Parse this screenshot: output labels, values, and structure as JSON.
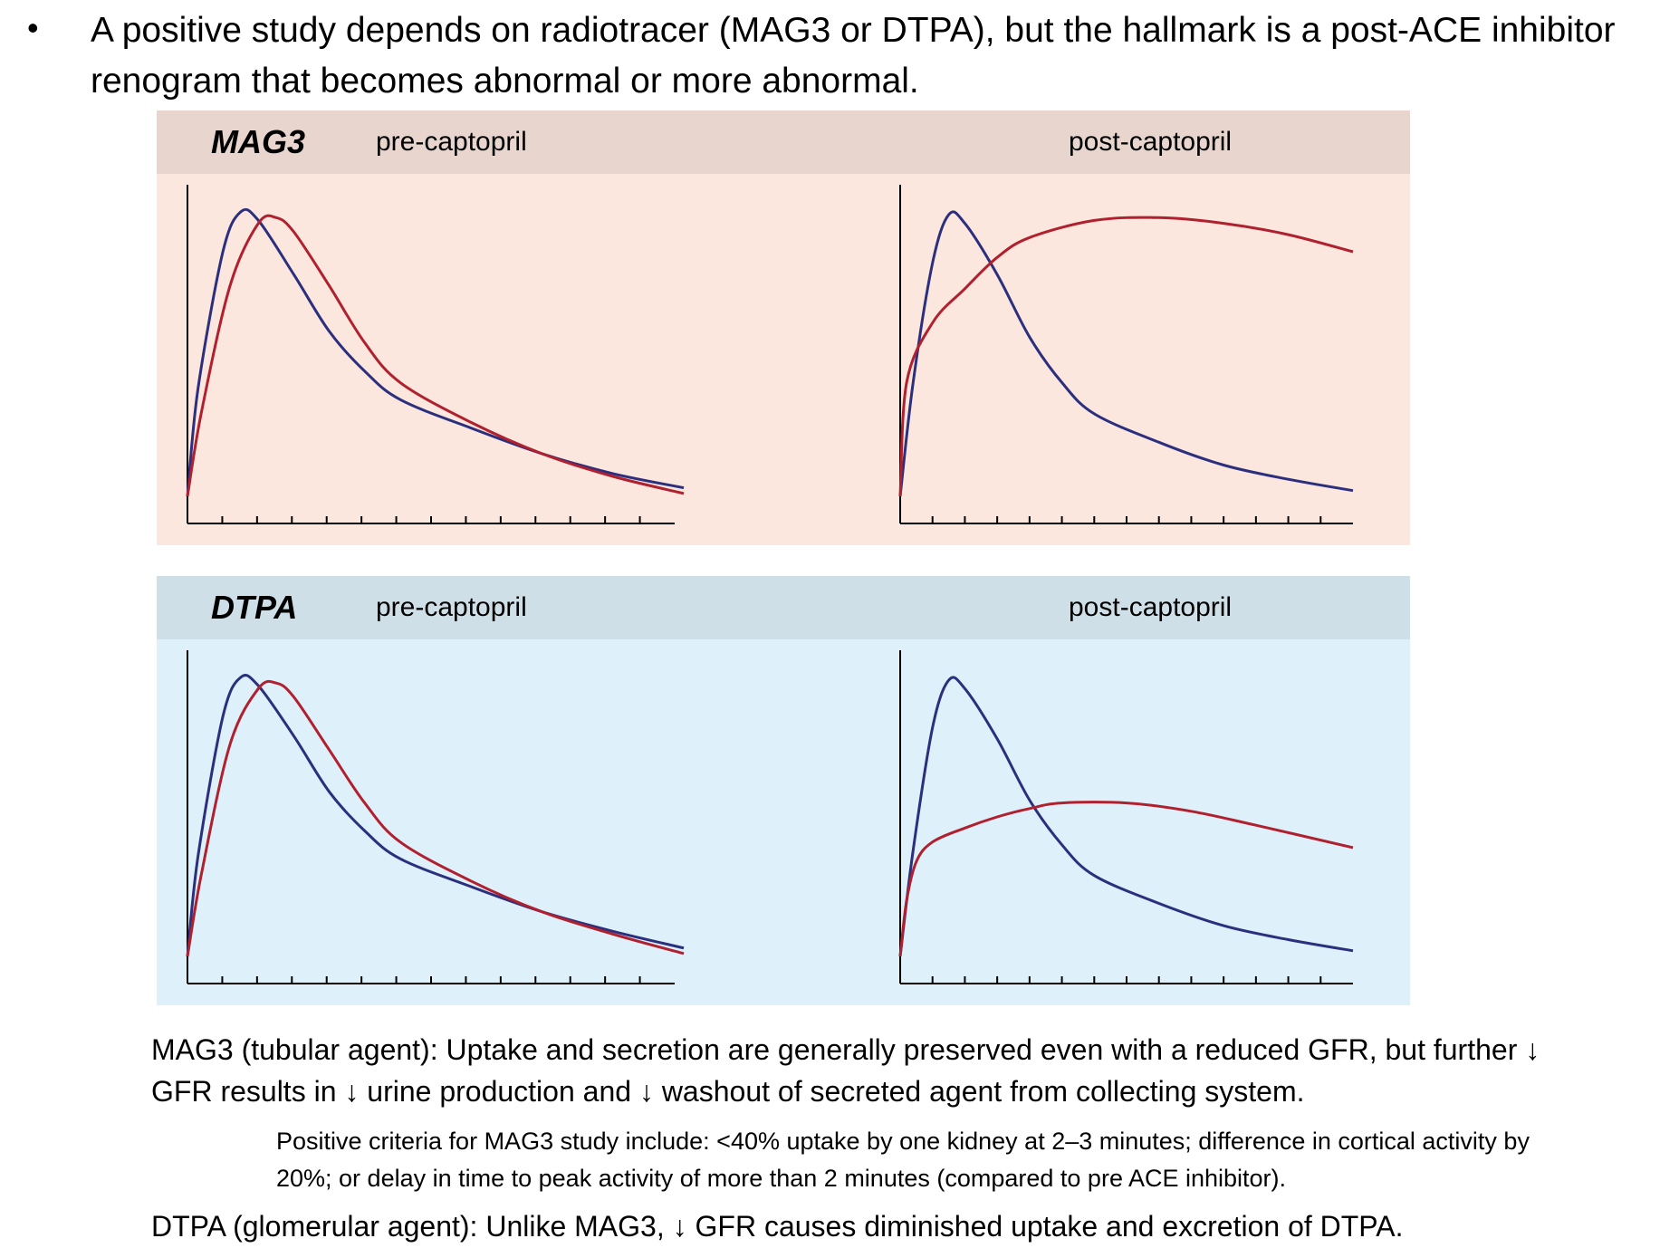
{
  "bullet": {
    "symbol": "•",
    "text": "A positive study depends on radiotracer (MAG3 or DTPA), but the hallmark is a post-ACE inhibitor renogram that becomes abnormal or more abnormal."
  },
  "colors": {
    "blue_curve": "#2b2f7e",
    "red_curve": "#b0202e",
    "mag3_header": "#e8d6ce",
    "mag3_body": "#fbe7de",
    "dtpa_header": "#cfdfe7",
    "dtpa_body": "#def0fa"
  },
  "panels": {
    "mag3": {
      "agent": "MAG3",
      "pre_label": "pre-captopril",
      "post_label": "post-captopril"
    },
    "dtpa": {
      "agent": "DTPA",
      "pre_label": "pre-captopril",
      "post_label": "post-captopril"
    }
  },
  "chart_data": [
    {
      "type": "line",
      "panel": "MAG3",
      "label": "pre-captopril",
      "x_ticks": 14,
      "series": [
        {
          "color": "#2b2f7e",
          "points": [
            [
              0,
              0.0
            ],
            [
              0.3,
              0.38
            ],
            [
              1,
              0.86
            ],
            [
              1.5,
              1.0
            ],
            [
              2,
              0.97
            ],
            [
              3,
              0.78
            ],
            [
              4,
              0.58
            ],
            [
              5,
              0.44
            ],
            [
              6,
              0.34
            ],
            [
              8,
              0.24
            ],
            [
              10,
              0.15
            ],
            [
              12,
              0.08
            ],
            [
              14,
              0.03
            ]
          ]
        },
        {
          "color": "#b0202e",
          "points": [
            [
              0,
              0.0
            ],
            [
              0.4,
              0.3
            ],
            [
              1.2,
              0.74
            ],
            [
              2,
              0.96
            ],
            [
              2.5,
              0.98
            ],
            [
              3,
              0.93
            ],
            [
              4,
              0.74
            ],
            [
              5,
              0.54
            ],
            [
              6,
              0.4
            ],
            [
              8,
              0.26
            ],
            [
              10,
              0.15
            ],
            [
              12,
              0.07
            ],
            [
              14,
              0.01
            ]
          ]
        }
      ]
    },
    {
      "type": "line",
      "panel": "MAG3",
      "label": "post-captopril",
      "x_ticks": 14,
      "series": [
        {
          "color": "#2b2f7e",
          "points": [
            [
              0,
              0.0
            ],
            [
              0.4,
              0.4
            ],
            [
              1,
              0.82
            ],
            [
              1.5,
              0.99
            ],
            [
              2,
              0.96
            ],
            [
              3,
              0.78
            ],
            [
              4,
              0.56
            ],
            [
              5,
              0.4
            ],
            [
              6,
              0.29
            ],
            [
              8,
              0.19
            ],
            [
              10,
              0.11
            ],
            [
              12,
              0.06
            ],
            [
              14,
              0.02
            ]
          ]
        },
        {
          "color": "#b0202e",
          "points": [
            [
              0,
              0.0
            ],
            [
              0.2,
              0.4
            ],
            [
              1,
              0.61
            ],
            [
              2,
              0.73
            ],
            [
              3,
              0.84
            ],
            [
              4,
              0.91
            ],
            [
              6,
              0.97
            ],
            [
              8,
              0.98
            ],
            [
              10,
              0.96
            ],
            [
              12,
              0.92
            ],
            [
              14,
              0.86
            ]
          ]
        }
      ]
    },
    {
      "type": "line",
      "panel": "DTPA",
      "label": "pre-captopril",
      "x_ticks": 14,
      "series": [
        {
          "color": "#2b2f7e",
          "points": [
            [
              0,
              0.0
            ],
            [
              0.3,
              0.36
            ],
            [
              1,
              0.86
            ],
            [
              1.5,
              1.0
            ],
            [
              2,
              0.97
            ],
            [
              3,
              0.79
            ],
            [
              4,
              0.59
            ],
            [
              5,
              0.45
            ],
            [
              6,
              0.35
            ],
            [
              8,
              0.25
            ],
            [
              10,
              0.16
            ],
            [
              12,
              0.09
            ],
            [
              14,
              0.03
            ]
          ]
        },
        {
          "color": "#b0202e",
          "points": [
            [
              0,
              0.0
            ],
            [
              0.4,
              0.3
            ],
            [
              1.2,
              0.76
            ],
            [
              2,
              0.96
            ],
            [
              2.5,
              0.98
            ],
            [
              3,
              0.93
            ],
            [
              4,
              0.74
            ],
            [
              5,
              0.55
            ],
            [
              6,
              0.41
            ],
            [
              8,
              0.27
            ],
            [
              10,
              0.16
            ],
            [
              12,
              0.08
            ],
            [
              14,
              0.01
            ]
          ]
        }
      ]
    },
    {
      "type": "line",
      "panel": "DTPA",
      "label": "post-captopril",
      "x_ticks": 14,
      "series": [
        {
          "color": "#2b2f7e",
          "points": [
            [
              0,
              0.0
            ],
            [
              0.4,
              0.38
            ],
            [
              1,
              0.82
            ],
            [
              1.5,
              0.99
            ],
            [
              2,
              0.96
            ],
            [
              3,
              0.78
            ],
            [
              4,
              0.56
            ],
            [
              5,
              0.4
            ],
            [
              6,
              0.29
            ],
            [
              8,
              0.19
            ],
            [
              10,
              0.11
            ],
            [
              12,
              0.06
            ],
            [
              14,
              0.02
            ]
          ]
        },
        {
          "color": "#b0202e",
          "points": [
            [
              0,
              0.0
            ],
            [
              0.2,
              0.2
            ],
            [
              0.5,
              0.34
            ],
            [
              1,
              0.41
            ],
            [
              2,
              0.46
            ],
            [
              3,
              0.5
            ],
            [
              4,
              0.53
            ],
            [
              5,
              0.55
            ],
            [
              7,
              0.55
            ],
            [
              9,
              0.52
            ],
            [
              11,
              0.47
            ],
            [
              14,
              0.39
            ]
          ]
        }
      ]
    }
  ],
  "notes": {
    "mag3": "MAG3 (tubular agent): Uptake and secretion are generally preserved even with a reduced GFR, but further ↓ GFR results in ↓ urine production and ↓ washout of secreted agent from collecting system.",
    "criteria": "Positive criteria for MAG3 study include: <40% uptake by one kidney at 2–3 minutes; difference in cortical activity by 20%; or delay in time to peak activity of more than 2 minutes (compared to pre ACE inhibitor).",
    "dtpa": "DTPA (glomerular agent): Unlike MAG3, ↓ GFR causes diminished uptake and excretion of DTPA."
  }
}
